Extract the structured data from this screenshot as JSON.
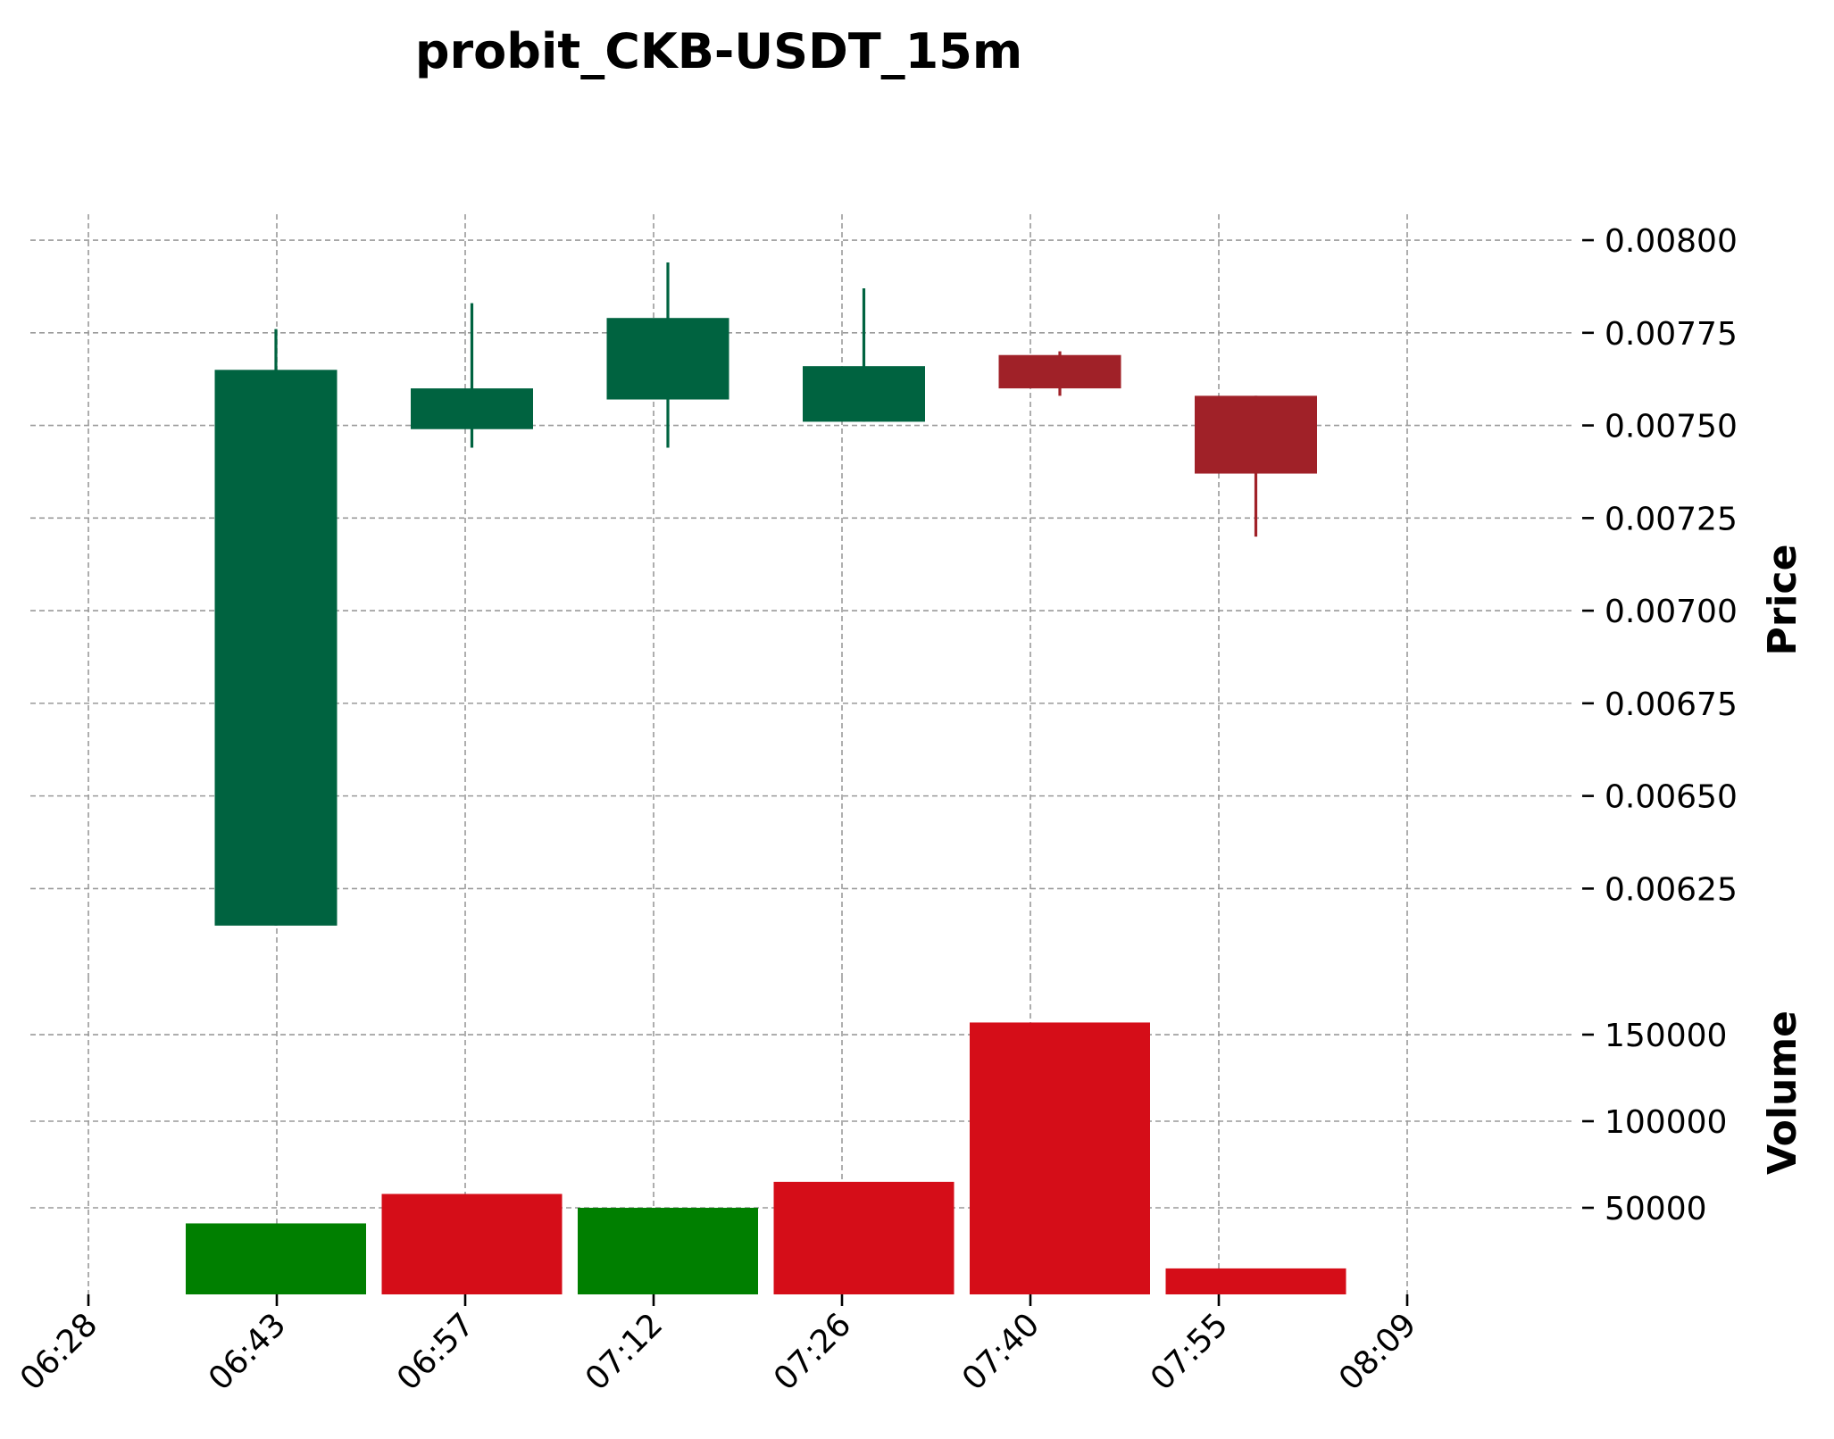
{
  "chart_data": {
    "type": "candlestick",
    "title": "probit_CKB-USDT_15m",
    "x_ticks": [
      "06:28",
      "06:43",
      "06:57",
      "07:12",
      "07:26",
      "07:40",
      "07:55",
      "08:09"
    ],
    "candles": [
      {
        "open": 0.00615,
        "high": 0.00776,
        "low": 0.00615,
        "close": 0.00765,
        "volume": 41000
      },
      {
        "open": 0.00749,
        "high": 0.00783,
        "low": 0.00744,
        "close": 0.0076,
        "volume": 58000
      },
      {
        "open": 0.00757,
        "high": 0.00794,
        "low": 0.00744,
        "close": 0.00779,
        "volume": 50000
      },
      {
        "open": 0.00751,
        "high": 0.00787,
        "low": 0.00751,
        "close": 0.00766,
        "volume": 65000
      },
      {
        "open": 0.00769,
        "high": 0.0077,
        "low": 0.00758,
        "close": 0.0076,
        "volume": 157000
      },
      {
        "open": 0.00758,
        "high": 0.00758,
        "low": 0.0072,
        "close": 0.00737,
        "volume": 15000
      }
    ],
    "price_axis": {
      "label": "Price",
      "ylim": [
        0.00601,
        0.00807
      ],
      "ticks": [
        "0.00800",
        "0.00775",
        "0.00750",
        "0.00725",
        "0.00700",
        "0.00675",
        "0.00650",
        "0.00625"
      ]
    },
    "volume_axis": {
      "label": "Volume",
      "ylim": [
        0,
        183000
      ],
      "ticks": [
        "150000",
        "100000",
        "50000"
      ]
    },
    "volume_colors": [
      "#007f00",
      "#d50d18",
      "#007f00",
      "#d50d18",
      "#d50d18",
      "#d50d18"
    ],
    "colors": {
      "up": "#006340",
      "down": "#a02128"
    },
    "grid": true
  }
}
